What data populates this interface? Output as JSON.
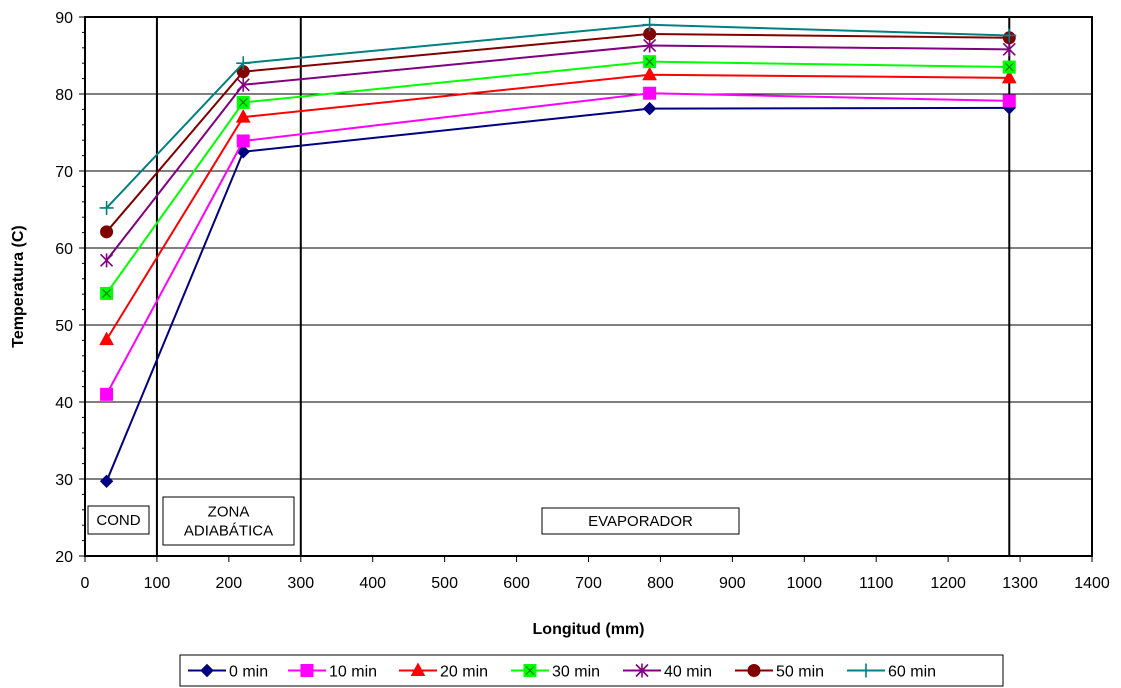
{
  "chart_data": {
    "type": "line",
    "title": "",
    "xlabel": "Longitud (mm)",
    "ylabel": "Temperatura (C)",
    "xlim": [
      0,
      1400
    ],
    "ylim": [
      20,
      90
    ],
    "x_ticks": [
      0,
      100,
      200,
      300,
      400,
      500,
      600,
      700,
      800,
      900,
      1000,
      1100,
      1200,
      1300,
      1400
    ],
    "y_ticks": [
      20,
      30,
      40,
      50,
      60,
      70,
      80,
      90
    ],
    "grid": "horizontal",
    "legend_position": "bottom",
    "x": [
      30,
      220,
      785,
      1285
    ],
    "series": [
      {
        "name": "0 min",
        "color": "#000080",
        "marker": "diamond",
        "values": [
          29.7,
          72.5,
          78.1,
          78.2
        ]
      },
      {
        "name": "10 min",
        "color": "#ff00ff",
        "marker": "square",
        "values": [
          41.0,
          73.9,
          80.1,
          79.1
        ]
      },
      {
        "name": "20 min",
        "color": "#ff0000",
        "marker": "triangle",
        "values": [
          48.1,
          77.0,
          82.5,
          82.1
        ]
      },
      {
        "name": "30 min",
        "color": "#00ff00",
        "marker": "square-x",
        "values": [
          54.1,
          78.9,
          84.2,
          83.5
        ]
      },
      {
        "name": "40 min",
        "color": "#800080",
        "marker": "asterisk",
        "values": [
          58.4,
          81.2,
          86.3,
          85.8
        ]
      },
      {
        "name": "50 min",
        "color": "#800000",
        "marker": "circle",
        "values": [
          62.1,
          82.9,
          87.8,
          87.3
        ]
      },
      {
        "name": "60 min",
        "color": "#008080",
        "marker": "plus",
        "values": [
          65.2,
          84.0,
          89.0,
          87.6
        ]
      }
    ],
    "vertical_lines": [
      100,
      300,
      1285
    ],
    "zones": [
      {
        "label_lines": [
          "COND"
        ]
      },
      {
        "label_lines": [
          "ZONA",
          "ADIABÁTICA"
        ]
      },
      {
        "label_lines": [
          "EVAPORADOR"
        ]
      }
    ]
  }
}
